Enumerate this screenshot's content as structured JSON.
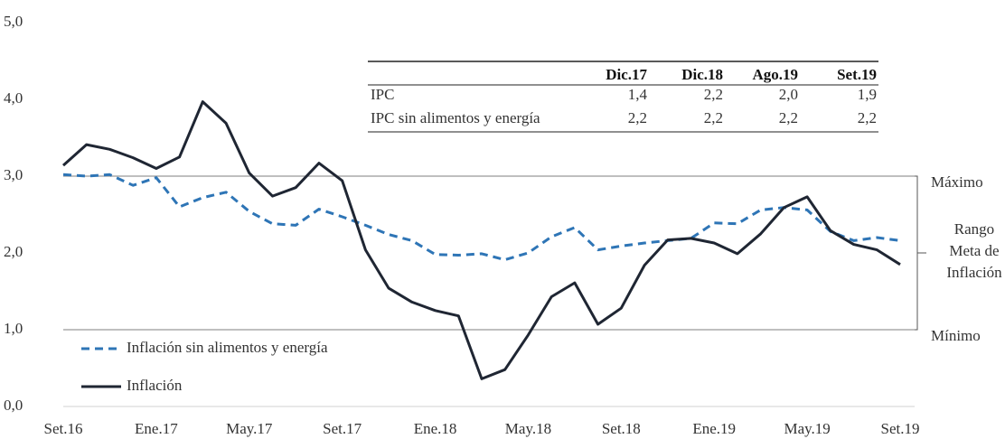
{
  "chart_data": {
    "type": "line",
    "categories": [
      "Set.16",
      null,
      null,
      null,
      "Ene.17",
      null,
      null,
      null,
      "May.17",
      null,
      null,
      null,
      "Set.17",
      null,
      null,
      null,
      "Ene.18",
      null,
      null,
      null,
      "May.18",
      null,
      null,
      null,
      "Set.18",
      null,
      null,
      null,
      "Ene.19",
      null,
      null,
      null,
      "May.19",
      null,
      null,
      null,
      "Set.19"
    ],
    "series": [
      {
        "name": "Inflación sin alimentos y energía",
        "color": "#2e75b6",
        "dash": true,
        "values": [
          3.02,
          3.0,
          3.02,
          2.88,
          2.98,
          2.6,
          2.72,
          2.79,
          2.54,
          2.38,
          2.36,
          2.57,
          2.47,
          2.36,
          2.24,
          2.16,
          1.98,
          1.97,
          1.99,
          1.91,
          2.0,
          2.21,
          2.33,
          2.04,
          2.09,
          2.13,
          2.16,
          2.19,
          2.39,
          2.38,
          2.56,
          2.59,
          2.56,
          2.28,
          2.16,
          2.2,
          2.16
        ]
      },
      {
        "name": "Inflación",
        "color": "#1f2633",
        "dash": false,
        "values": [
          3.14,
          3.41,
          3.35,
          3.24,
          3.1,
          3.25,
          3.97,
          3.69,
          3.04,
          2.74,
          2.85,
          3.17,
          2.94,
          2.04,
          1.54,
          1.36,
          1.25,
          1.18,
          0.36,
          0.48,
          0.93,
          1.43,
          1.61,
          1.07,
          1.28,
          1.84,
          2.17,
          2.19,
          2.13,
          1.99,
          2.25,
          2.59,
          2.73,
          2.29,
          2.11,
          2.04,
          1.85
        ]
      }
    ],
    "ylim": [
      0,
      5
    ],
    "yticks": [
      {
        "value": 0,
        "label": "0,0"
      },
      {
        "value": 1,
        "label": "1,0"
      },
      {
        "value": 2,
        "label": "2,0"
      },
      {
        "value": 3,
        "label": "3,0"
      },
      {
        "value": 4,
        "label": "4,0"
      },
      {
        "value": 5,
        "label": "5,0"
      }
    ],
    "reference_lines": [
      {
        "value": 3,
        "label": "Máximo"
      },
      {
        "value": 1,
        "label": "Mínimo"
      }
    ],
    "range_label": [
      "Rango",
      "Meta de",
      "Inflación"
    ],
    "legend": "lower left",
    "table": {
      "columns": [
        "Dic.17",
        "Dic.18",
        "Ago.19",
        "Set.19"
      ],
      "rows": [
        {
          "label": "IPC",
          "values": [
            "1,4",
            "2,2",
            "2,0",
            "1,9"
          ]
        },
        {
          "label": "IPC sin alimentos y energía",
          "values": [
            "2,2",
            "2,2",
            "2,2",
            "2,2"
          ]
        }
      ]
    }
  }
}
